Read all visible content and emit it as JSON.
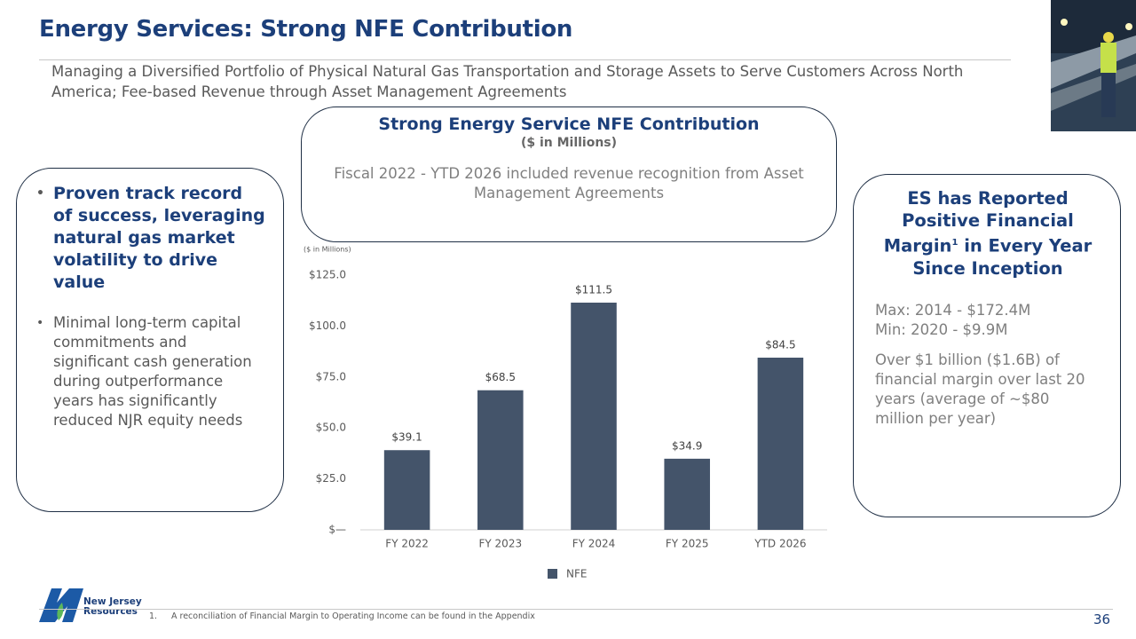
{
  "slide": {
    "title": "Energy Services: Strong NFE Contribution",
    "subtitle": "Managing a Diversified Portfolio of Physical Natural Gas Transportation and Storage Assets to Serve Customers Across North America; Fee-based Revenue through Asset Management Agreements",
    "left_box": {
      "bullets": [
        "Proven track record of success, leveraging natural gas market volatility to drive value",
        "Minimal long-term capital commitments and significant cash generation during outperformance years has significantly reduced NJR equity needs"
      ]
    },
    "center_box": {
      "title": "Strong Energy Service NFE Contribution",
      "subtitle": "($ in Millions)",
      "note": "Fiscal 2022 - YTD 2026 included revenue recognition from Asset Management Agreements"
    },
    "right_box": {
      "title": "ES has Reported Positive Financial Margin",
      "title_sup": "1",
      "title_end": "in Every Year Since Inception",
      "max": "Max: 2014 - $172.4M",
      "min": "Min:  2020 - $9.9M",
      "summary": "Over $1 billion ($1.6B) of financial margin over last 20 years (average of ~$80 million per year)"
    },
    "logo": [
      "New Jersey",
      "Resources"
    ],
    "footnote_number": "1.",
    "footnote": "A reconciliation of Financial Margin to Operating Income can be found in the Appendix",
    "page_number": "36"
  },
  "chart_data": {
    "type": "bar",
    "y_label": "($ in Millions)",
    "categories": [
      "FY 2022",
      "FY 2023",
      "FY 2024",
      "FY 2025",
      "YTD 2026"
    ],
    "series": [
      {
        "name": "NFE",
        "color": "#44546a",
        "values": [
          39.1,
          68.5,
          111.5,
          34.9,
          84.5
        ],
        "value_labels": [
          "$39.1",
          "$68.5",
          "$111.5",
          "$34.9",
          "$84.5"
        ]
      }
    ],
    "ylim": [
      0,
      125
    ],
    "yticks": [
      {
        "value": 0,
        "label": "$—"
      },
      {
        "value": 25,
        "label": "$25.0"
      },
      {
        "value": 50,
        "label": "$50.0"
      },
      {
        "value": 75,
        "label": "$75.0"
      },
      {
        "value": 100,
        "label": "$100.0"
      },
      {
        "value": 125,
        "label": "$125.0"
      }
    ],
    "grid": false,
    "legend": "bottom"
  }
}
